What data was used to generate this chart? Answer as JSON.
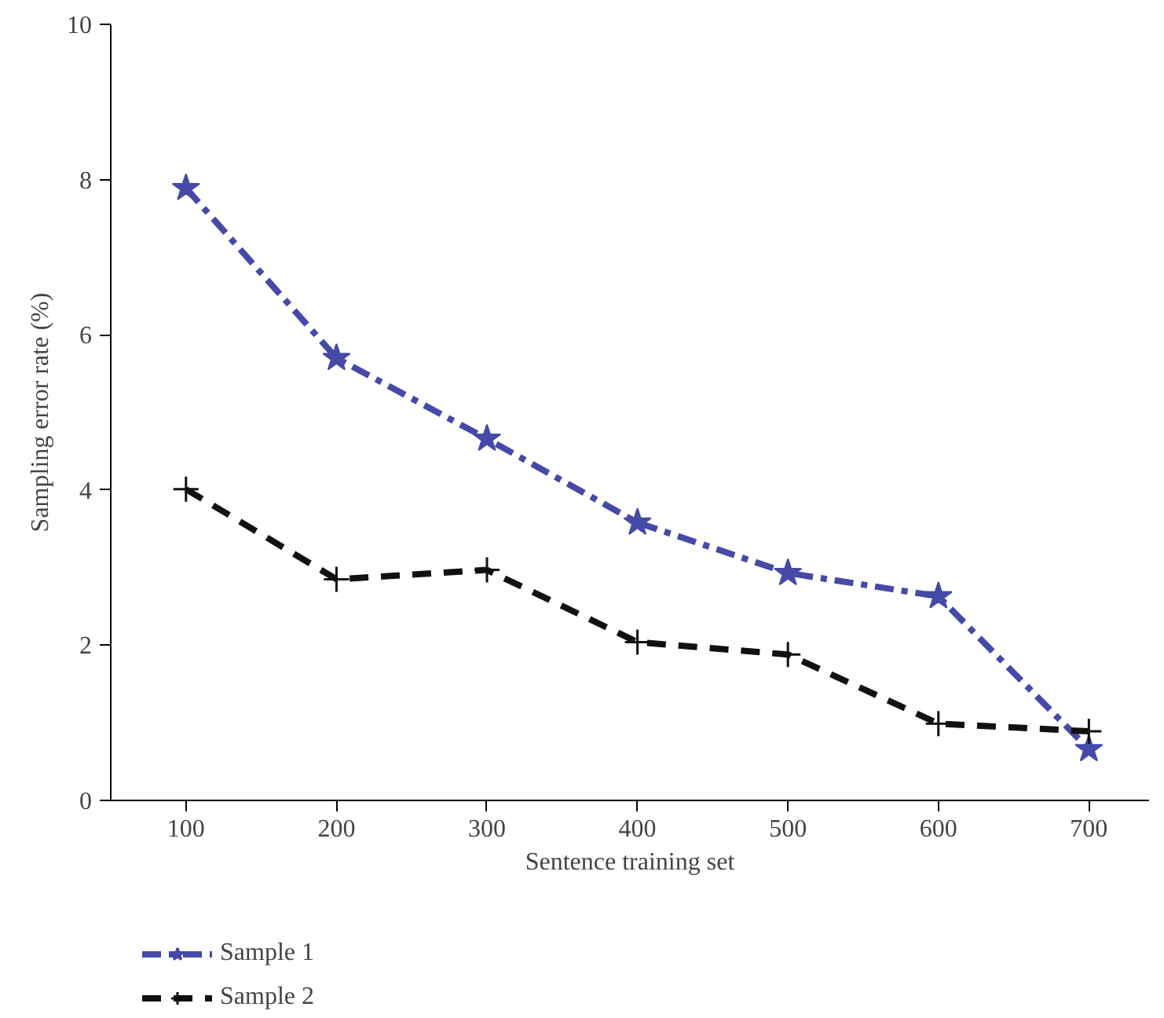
{
  "chart_data": {
    "type": "line",
    "xlabel": "Sentence training set",
    "ylabel": "Sampling error rate (%)",
    "x": [
      100,
      200,
      300,
      400,
      500,
      600,
      700
    ],
    "xlim": [
      50,
      740
    ],
    "xticks": [
      100,
      200,
      300,
      400,
      500,
      600,
      700
    ],
    "ylim": [
      0,
      10
    ],
    "yticks": [
      0,
      2,
      4,
      6,
      8,
      10
    ],
    "grid": false,
    "legend": "bottom left",
    "series": [
      {
        "name": "Sample 1",
        "color": "#4549a8",
        "marker": "star",
        "line_style": "dashdot",
        "values": [
          7.89,
          5.7,
          4.66,
          3.58,
          2.93,
          2.63,
          0.66
        ]
      },
      {
        "name": "Sample 2",
        "color": "#111111",
        "marker": "cross",
        "line_style": "dashed",
        "values": [
          4.01,
          2.85,
          2.97,
          2.04,
          1.88,
          0.99,
          0.89
        ]
      }
    ]
  }
}
